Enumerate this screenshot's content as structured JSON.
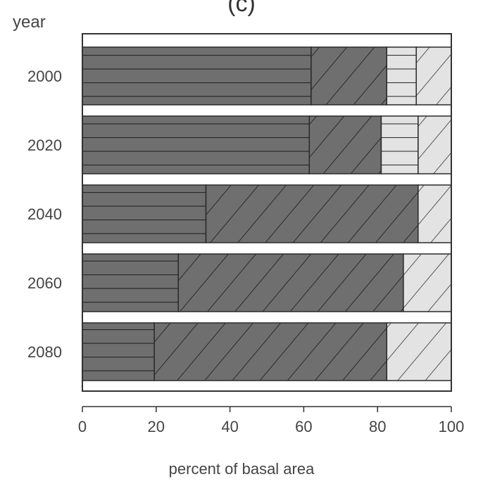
{
  "chart_data": {
    "type": "bar",
    "orientation": "horizontal",
    "stacked": true,
    "panel_label": "(c)",
    "title": "",
    "xlabel": "percent of basal area",
    "ylabel": "year",
    "xlim": [
      0,
      100
    ],
    "xticks": [
      0,
      20,
      40,
      60,
      80,
      100
    ],
    "categories": [
      "2000",
      "2020",
      "2040",
      "2060",
      "2080"
    ],
    "grid": false,
    "legend": "none",
    "series": [
      {
        "pattern": "horizontal-lines",
        "color": "#6f6f6f",
        "values": [
          62,
          61.5,
          33.5,
          26,
          19.5
        ]
      },
      {
        "pattern": "diagonal-hatch",
        "color": "#6f6f6f",
        "values": [
          20.5,
          19.5,
          57.5,
          61,
          63
        ]
      },
      {
        "pattern": "horizontal-lines",
        "color": "#e3e3e3",
        "values": [
          8,
          10,
          0,
          0,
          0
        ]
      },
      {
        "pattern": "diagonal-hatch",
        "color": "#e3e3e3",
        "values": [
          9.5,
          9,
          9,
          13,
          17.5
        ]
      }
    ]
  }
}
